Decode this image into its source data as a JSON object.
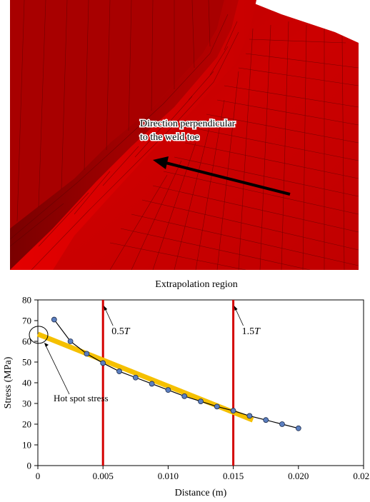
{
  "figure": {
    "mesh_annotation": {
      "line1": "Direction perpendicular",
      "line2": "to the weld toe"
    },
    "colors": {
      "mesh": "#cc0000",
      "mesh_dark": "#8a0000",
      "mesh_lines": "#5a0000",
      "fit_line": "#f5c000",
      "region_lines": "#d40000",
      "points": "#5b7fc0"
    }
  },
  "chart_data": {
    "type": "scatter",
    "title": "Extrapolation region",
    "xlabel": "Distance (m)",
    "ylabel": "Stress (MPa)",
    "xlim": [
      0,
      0.025
    ],
    "ylim": [
      0,
      80
    ],
    "xticks": [
      "0",
      "0.005",
      "0.010",
      "0.015",
      "0.020",
      "0.025"
    ],
    "yticks": [
      "0",
      "10",
      "20",
      "30",
      "40",
      "50",
      "60",
      "70",
      "80"
    ],
    "series": [
      {
        "x": [
          0.00125,
          0.0025,
          0.00375,
          0.005,
          0.00625,
          0.0075,
          0.00875,
          0.01,
          0.01125,
          0.0125,
          0.01375,
          0.015,
          0.01625,
          0.0175,
          0.01875,
          0.02
        ],
        "y": [
          70.5,
          60,
          54,
          49.5,
          45.5,
          42.5,
          39.5,
          36.5,
          33.5,
          31,
          28.5,
          26.5,
          24,
          22,
          20,
          18
        ]
      }
    ],
    "fit_line": {
      "x": [
        0,
        0.0165
      ],
      "y": [
        63.5,
        22
      ]
    },
    "vertical_lines": [
      {
        "x": 0.005,
        "label_prefix": "0.5",
        "label_var": "T"
      },
      {
        "x": 0.015,
        "label_prefix": "1.5",
        "label_var": "T"
      }
    ],
    "annotation": {
      "text": "Hot spot stress",
      "x": 0,
      "y": 63.5
    },
    "grid": false,
    "legend": "none"
  }
}
